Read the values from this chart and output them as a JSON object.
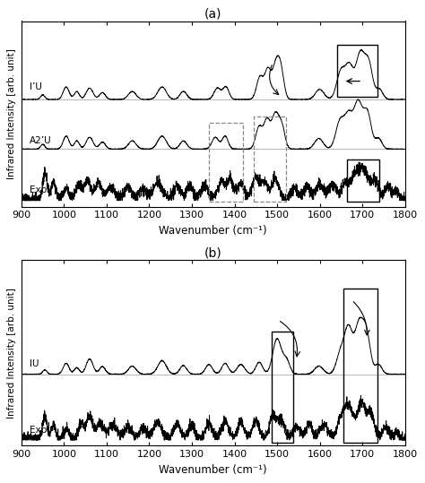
{
  "title_a": "(a)",
  "title_b": "(b)",
  "xlabel": "Wavenumber (cm⁻¹)",
  "ylabel": "Infrared Intensity [arb. unit]",
  "xlim": [
    900,
    1800
  ],
  "background_color": "#ffffff",
  "label_IpU": "I’U",
  "label_A2pU": "A2’U",
  "label_IU": "IU",
  "label_Exp": "Exp."
}
